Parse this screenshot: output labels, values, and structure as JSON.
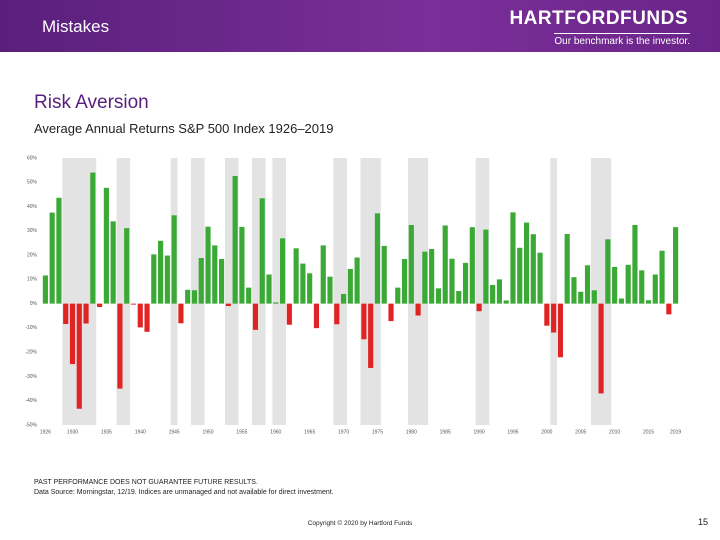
{
  "header": {
    "section": "Mistakes",
    "logo": "HARTFORDFUNDS",
    "tagline": "Our benchmark is the investor."
  },
  "chart_data": {
    "type": "bar",
    "title": "Risk Aversion",
    "subtitle": "Average Annual Returns S&P 500 Index 1926–2019",
    "x": [
      1926,
      1927,
      1928,
      1929,
      1930,
      1931,
      1932,
      1933,
      1934,
      1935,
      1936,
      1937,
      1938,
      1939,
      1940,
      1941,
      1942,
      1943,
      1944,
      1945,
      1946,
      1947,
      1948,
      1949,
      1950,
      1951,
      1952,
      1953,
      1954,
      1955,
      1956,
      1957,
      1958,
      1959,
      1960,
      1961,
      1962,
      1963,
      1964,
      1965,
      1966,
      1967,
      1968,
      1969,
      1970,
      1971,
      1972,
      1973,
      1974,
      1975,
      1976,
      1977,
      1978,
      1979,
      1980,
      1981,
      1982,
      1983,
      1984,
      1985,
      1986,
      1987,
      1988,
      1989,
      1990,
      1991,
      1992,
      1993,
      1994,
      1995,
      1996,
      1997,
      1998,
      1999,
      2000,
      2001,
      2002,
      2003,
      2004,
      2005,
      2006,
      2007,
      2008,
      2009,
      2010,
      2011,
      2012,
      2013,
      2014,
      2015,
      2016,
      2017,
      2018,
      2019
    ],
    "values": [
      11.6,
      37.5,
      43.6,
      -8.4,
      -24.9,
      -43.3,
      -8.2,
      54.0,
      -1.4,
      47.7,
      33.9,
      -35.0,
      31.1,
      -0.4,
      -9.8,
      -11.6,
      20.3,
      25.9,
      19.8,
      36.4,
      -8.1,
      5.7,
      5.5,
      18.8,
      31.7,
      24.0,
      18.4,
      -1.0,
      52.6,
      31.6,
      6.6,
      -10.8,
      43.4,
      12.0,
      0.5,
      26.9,
      -8.7,
      22.8,
      16.5,
      12.5,
      -10.1,
      24.0,
      11.1,
      -8.5,
      4.0,
      14.3,
      19.0,
      -14.7,
      -26.5,
      37.2,
      23.8,
      -7.2,
      6.6,
      18.4,
      32.4,
      -4.9,
      21.4,
      22.5,
      6.3,
      32.2,
      18.5,
      5.2,
      16.8,
      31.5,
      -3.1,
      30.5,
      7.7,
      10.0,
      1.3,
      37.6,
      23.0,
      33.4,
      28.6,
      21.0,
      -9.1,
      -11.9,
      -22.1,
      28.7,
      10.9,
      4.9,
      15.8,
      5.5,
      -37.0,
      26.5,
      15.1,
      2.1,
      16.0,
      32.4,
      13.7,
      1.4,
      12.0,
      21.8,
      -4.4,
      31.5
    ],
    "positive_color": "#3aa935",
    "negative_color": "#e02424",
    "recession_color": "#e3e3e3",
    "recessions": [
      [
        1929,
        1933
      ],
      [
        1937,
        1938
      ],
      [
        1945,
        1945
      ],
      [
        1948,
        1949
      ],
      [
        1953,
        1954
      ],
      [
        1957,
        1958
      ],
      [
        1960,
        1961
      ],
      [
        1969,
        1970
      ],
      [
        1973,
        1975
      ],
      [
        1980,
        1982
      ],
      [
        1990,
        1991
      ],
      [
        2001,
        2001
      ],
      [
        2007,
        2009
      ]
    ],
    "xlim": [
      1925.5,
      2019.5
    ],
    "xticks": [
      1926,
      1930,
      1935,
      1940,
      1945,
      1950,
      1955,
      1960,
      1965,
      1970,
      1975,
      1980,
      1985,
      1990,
      1995,
      2000,
      2005,
      2010,
      2015,
      2019
    ],
    "ylim": [
      -50,
      60
    ],
    "yticks": [
      {
        "value": 60,
        "label": "60%"
      },
      {
        "value": 50,
        "label": "50%"
      },
      {
        "value": 40,
        "label": "40%"
      },
      {
        "value": 30,
        "label": "30%"
      },
      {
        "value": 20,
        "label": "20%"
      },
      {
        "value": 10,
        "label": "10%"
      },
      {
        "value": 0,
        "label": "0%"
      },
      {
        "value": -10,
        "label": "-10%"
      },
      {
        "value": -20,
        "label": "-20%"
      },
      {
        "value": -30,
        "label": "-30%"
      },
      {
        "value": -40,
        "label": "-40%"
      },
      {
        "value": -50,
        "label": "-50%"
      }
    ]
  },
  "footnotes": [
    "PAST PERFORMANCE DOES NOT GUARANTEE FUTURE RESULTS.",
    "Data Source: Morningstar, 12/19. Indices are unmanaged and not available for direct investment."
  ],
  "copyright": "Copyright © 2020 by Hartford Funds",
  "page_number": "15"
}
